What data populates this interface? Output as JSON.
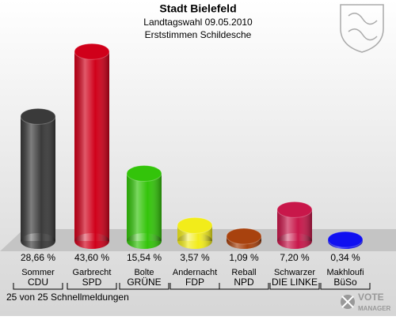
{
  "chart_data": {
    "type": "bar",
    "title": "Stadt Bielefeld",
    "subtitles": [
      "Landtagswahl 09.05.2010",
      "Erststimmen Schildesche"
    ],
    "categories": [
      "Sommer",
      "Garbrecht",
      "Bolte",
      "Andernacht",
      "Reball",
      "Schwarzer",
      "Makhloufi"
    ],
    "parties": [
      "CDU",
      "SPD",
      "GRÜNE",
      "FDP",
      "NPD",
      "DIE LINKE",
      "BüSo"
    ],
    "values": [
      28.66,
      43.6,
      15.54,
      3.57,
      1.09,
      7.2,
      0.34
    ],
    "value_labels": [
      "28,66 %",
      "43,60 %",
      "15,54 %",
      "3,57 %",
      "1,09 %",
      "7,20 %",
      "0,34 %"
    ],
    "colors": [
      "#3a3a3a",
      "#d0001a",
      "#33c40a",
      "#f2ec1a",
      "#a8420e",
      "#c8174a",
      "#1010f0"
    ],
    "note": "25 von 25 Schnellmeldungen"
  },
  "branding": [
    "VOTE",
    "MANAGER"
  ]
}
